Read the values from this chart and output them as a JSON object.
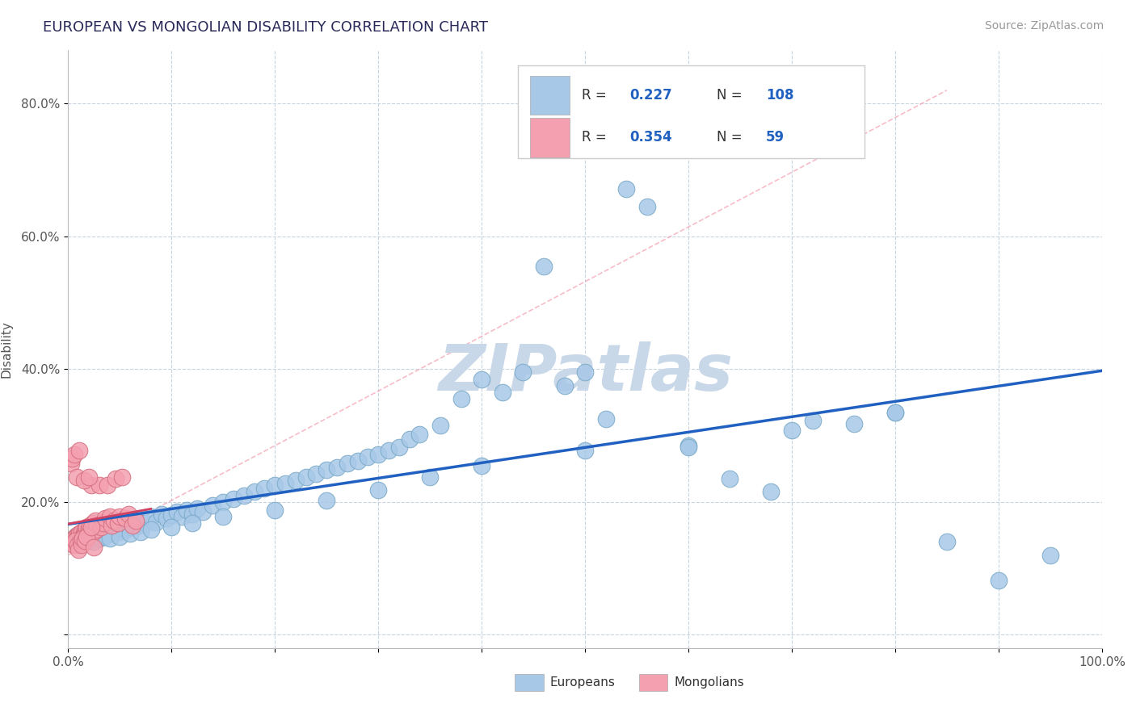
{
  "title": "EUROPEAN VS MONGOLIAN DISABILITY CORRELATION CHART",
  "source_text": "Source: ZipAtlas.com",
  "ylabel": "Disability",
  "xlim": [
    0.0,
    1.0
  ],
  "ylim": [
    -0.02,
    0.88
  ],
  "x_ticks": [
    0.0,
    0.1,
    0.2,
    0.3,
    0.4,
    0.5,
    0.6,
    0.7,
    0.8,
    0.9,
    1.0
  ],
  "x_tick_labels": [
    "0.0%",
    "",
    "",
    "",
    "",
    "",
    "",
    "",
    "",
    "",
    "100.0%"
  ],
  "y_ticks": [
    0.0,
    0.2,
    0.4,
    0.6,
    0.8
  ],
  "y_tick_labels": [
    "",
    "20.0%",
    "40.0%",
    "60.0%",
    "80.0%"
  ],
  "european_R": 0.227,
  "european_N": 108,
  "mongolian_R": 0.354,
  "mongolian_N": 59,
  "european_color": "#a8c8e8",
  "european_edge_color": "#7aaac8",
  "mongolian_color": "#f4a0b0",
  "mongolian_edge_color": "#d47080",
  "european_line_color": "#2060c0",
  "mongolian_line_color": "#d04060",
  "watermark_color": "#c8d8e8",
  "legend_r_color": "#2060c0",
  "legend_black_color": "#333333",
  "background_color": "#ffffff",
  "grid_color": "#c8d4e0",
  "europeans_x": [
    0.005,
    0.008,
    0.01,
    0.012,
    0.014,
    0.016,
    0.018,
    0.02,
    0.022,
    0.024,
    0.026,
    0.028,
    0.03,
    0.032,
    0.034,
    0.036,
    0.038,
    0.04,
    0.042,
    0.044,
    0.046,
    0.048,
    0.05,
    0.052,
    0.054,
    0.056,
    0.058,
    0.06,
    0.062,
    0.065,
    0.068,
    0.07,
    0.075,
    0.08,
    0.085,
    0.09,
    0.095,
    0.1,
    0.105,
    0.11,
    0.115,
    0.12,
    0.125,
    0.13,
    0.14,
    0.15,
    0.16,
    0.17,
    0.18,
    0.19,
    0.2,
    0.21,
    0.22,
    0.23,
    0.24,
    0.25,
    0.26,
    0.27,
    0.28,
    0.29,
    0.3,
    0.31,
    0.32,
    0.33,
    0.34,
    0.36,
    0.38,
    0.4,
    0.42,
    0.44,
    0.46,
    0.48,
    0.5,
    0.52,
    0.54,
    0.56,
    0.6,
    0.64,
    0.68,
    0.72,
    0.76,
    0.8,
    0.85,
    0.9,
    0.95,
    0.01,
    0.015,
    0.02,
    0.025,
    0.03,
    0.035,
    0.04,
    0.05,
    0.06,
    0.07,
    0.08,
    0.1,
    0.12,
    0.15,
    0.2,
    0.25,
    0.3,
    0.35,
    0.4,
    0.5,
    0.6,
    0.7,
    0.8
  ],
  "europeans_y": [
    0.145,
    0.15,
    0.148,
    0.152,
    0.146,
    0.155,
    0.15,
    0.148,
    0.155,
    0.152,
    0.158,
    0.15,
    0.155,
    0.148,
    0.162,
    0.155,
    0.158,
    0.152,
    0.165,
    0.158,
    0.162,
    0.155,
    0.168,
    0.16,
    0.165,
    0.158,
    0.17,
    0.162,
    0.168,
    0.172,
    0.165,
    0.175,
    0.168,
    0.178,
    0.17,
    0.182,
    0.175,
    0.18,
    0.185,
    0.178,
    0.188,
    0.182,
    0.19,
    0.185,
    0.195,
    0.2,
    0.205,
    0.21,
    0.215,
    0.22,
    0.225,
    0.228,
    0.232,
    0.238,
    0.242,
    0.248,
    0.252,
    0.258,
    0.262,
    0.268,
    0.272,
    0.278,
    0.282,
    0.295,
    0.302,
    0.315,
    0.355,
    0.385,
    0.365,
    0.395,
    0.555,
    0.375,
    0.395,
    0.325,
    0.672,
    0.645,
    0.285,
    0.235,
    0.215,
    0.322,
    0.318,
    0.335,
    0.14,
    0.082,
    0.12,
    0.142,
    0.145,
    0.142,
    0.14,
    0.145,
    0.148,
    0.145,
    0.148,
    0.152,
    0.155,
    0.158,
    0.162,
    0.168,
    0.178,
    0.188,
    0.202,
    0.218,
    0.238,
    0.255,
    0.278,
    0.282,
    0.308,
    0.335
  ],
  "mongolians_x": [
    0.003,
    0.005,
    0.006,
    0.007,
    0.008,
    0.009,
    0.01,
    0.011,
    0.012,
    0.013,
    0.014,
    0.015,
    0.016,
    0.017,
    0.018,
    0.019,
    0.02,
    0.021,
    0.022,
    0.023,
    0.024,
    0.025,
    0.026,
    0.027,
    0.028,
    0.03,
    0.032,
    0.034,
    0.036,
    0.038,
    0.04,
    0.042,
    0.044,
    0.046,
    0.048,
    0.05,
    0.052,
    0.055,
    0.058,
    0.062,
    0.065,
    0.003,
    0.004,
    0.005,
    0.006,
    0.007,
    0.008,
    0.009,
    0.01,
    0.011,
    0.012,
    0.013,
    0.014,
    0.015,
    0.016,
    0.018,
    0.02,
    0.022,
    0.025
  ],
  "mongolians_y": [
    0.138,
    0.142,
    0.145,
    0.148,
    0.145,
    0.15,
    0.148,
    0.152,
    0.145,
    0.155,
    0.148,
    0.152,
    0.158,
    0.155,
    0.162,
    0.148,
    0.16,
    0.165,
    0.225,
    0.162,
    0.168,
    0.155,
    0.172,
    0.158,
    0.165,
    0.225,
    0.162,
    0.168,
    0.175,
    0.225,
    0.178,
    0.165,
    0.172,
    0.235,
    0.168,
    0.178,
    0.238,
    0.175,
    0.182,
    0.165,
    0.172,
    0.258,
    0.265,
    0.135,
    0.272,
    0.142,
    0.238,
    0.135,
    0.128,
    0.278,
    0.142,
    0.135,
    0.145,
    0.232,
    0.142,
    0.148,
    0.238,
    0.162,
    0.132
  ]
}
